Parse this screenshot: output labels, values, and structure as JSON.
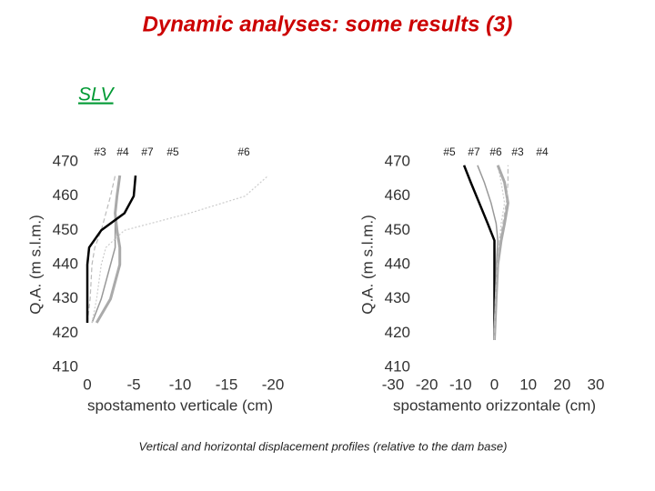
{
  "title": "Dynamic analyses: some results (3)",
  "subtitle": "SLV",
  "caption": "Vertical and horizontal displacement profiles (relative to the dam base)",
  "chart_data": [
    {
      "type": "line",
      "ylabel": "Q.A. (m s.l.m.)",
      "xlabel": "spostamento verticale (cm)",
      "xlim": [
        0,
        -20
      ],
      "xticks": [
        0,
        -5,
        -10,
        -15,
        -20
      ],
      "ylim": [
        410,
        470
      ],
      "yticks": [
        410,
        420,
        430,
        440,
        450,
        460,
        470
      ],
      "y": [
        423,
        430,
        440,
        445,
        450,
        455,
        460,
        466
      ],
      "series": [
        {
          "name": "#3",
          "color": "#bbbbbb",
          "width": 1.2,
          "dash": "5 3",
          "values": [
            0,
            -0.3,
            -0.5,
            -0.8,
            -1.5,
            -2,
            -2.5,
            -3
          ]
        },
        {
          "name": "#4",
          "color": "#999999",
          "width": 1.5,
          "dash": "",
          "values": [
            -0.5,
            -1.5,
            -2.5,
            -3,
            -3,
            -3,
            -3.2,
            -3.5
          ]
        },
        {
          "name": "#7",
          "color": "#aaaaaa",
          "width": 3,
          "dash": "",
          "values": [
            -1,
            -2.5,
            -3.5,
            -3.5,
            -3.2,
            -3,
            -3.2,
            -3.5
          ]
        },
        {
          "name": "#5",
          "color": "#000000",
          "width": 2.5,
          "dash": "",
          "values": [
            0,
            0,
            0,
            -0.2,
            -1.5,
            -4,
            -5,
            -5.2
          ]
        },
        {
          "name": "#6",
          "color": "#cccccc",
          "width": 1.2,
          "dash": "2 2",
          "values": [
            -0.5,
            -1,
            -1.5,
            -2,
            -4,
            -11,
            -17,
            -19.5
          ]
        }
      ]
    },
    {
      "type": "line",
      "ylabel": "Q.A. (m s.l.m.)",
      "xlabel": "spostamento orizzontale (cm)",
      "xlim": [
        -30,
        30
      ],
      "xticks": [
        -30,
        -20,
        -10,
        0,
        10,
        20,
        30
      ],
      "ylim": [
        410,
        470
      ],
      "yticks": [
        410,
        420,
        430,
        440,
        450,
        460,
        470
      ],
      "y": [
        418,
        430,
        440,
        447,
        452,
        458,
        464,
        469
      ],
      "series": [
        {
          "name": "#5",
          "color": "#000000",
          "width": 2.5,
          "dash": "",
          "values": [
            0,
            0,
            0,
            0,
            -2,
            -4.5,
            -7,
            -9
          ]
        },
        {
          "name": "#7",
          "color": "#999999",
          "width": 1.5,
          "dash": "",
          "values": [
            0,
            0.3,
            0.6,
            1,
            0.5,
            -1,
            -3,
            -5
          ]
        },
        {
          "name": "#6",
          "color": "#cccccc",
          "width": 1.2,
          "dash": "2 2",
          "values": [
            0,
            0.5,
            1,
            1.5,
            2,
            3,
            2,
            1
          ]
        },
        {
          "name": "#3",
          "color": "#aaaaaa",
          "width": 3,
          "dash": "",
          "values": [
            0,
            0.5,
            1,
            2,
            3,
            4,
            3,
            1
          ]
        },
        {
          "name": "#4",
          "color": "#bbbbbb",
          "width": 1.2,
          "dash": "5 3",
          "values": [
            0,
            0.3,
            0.8,
            1.5,
            2.5,
            3.5,
            4,
            4
          ]
        }
      ]
    }
  ]
}
